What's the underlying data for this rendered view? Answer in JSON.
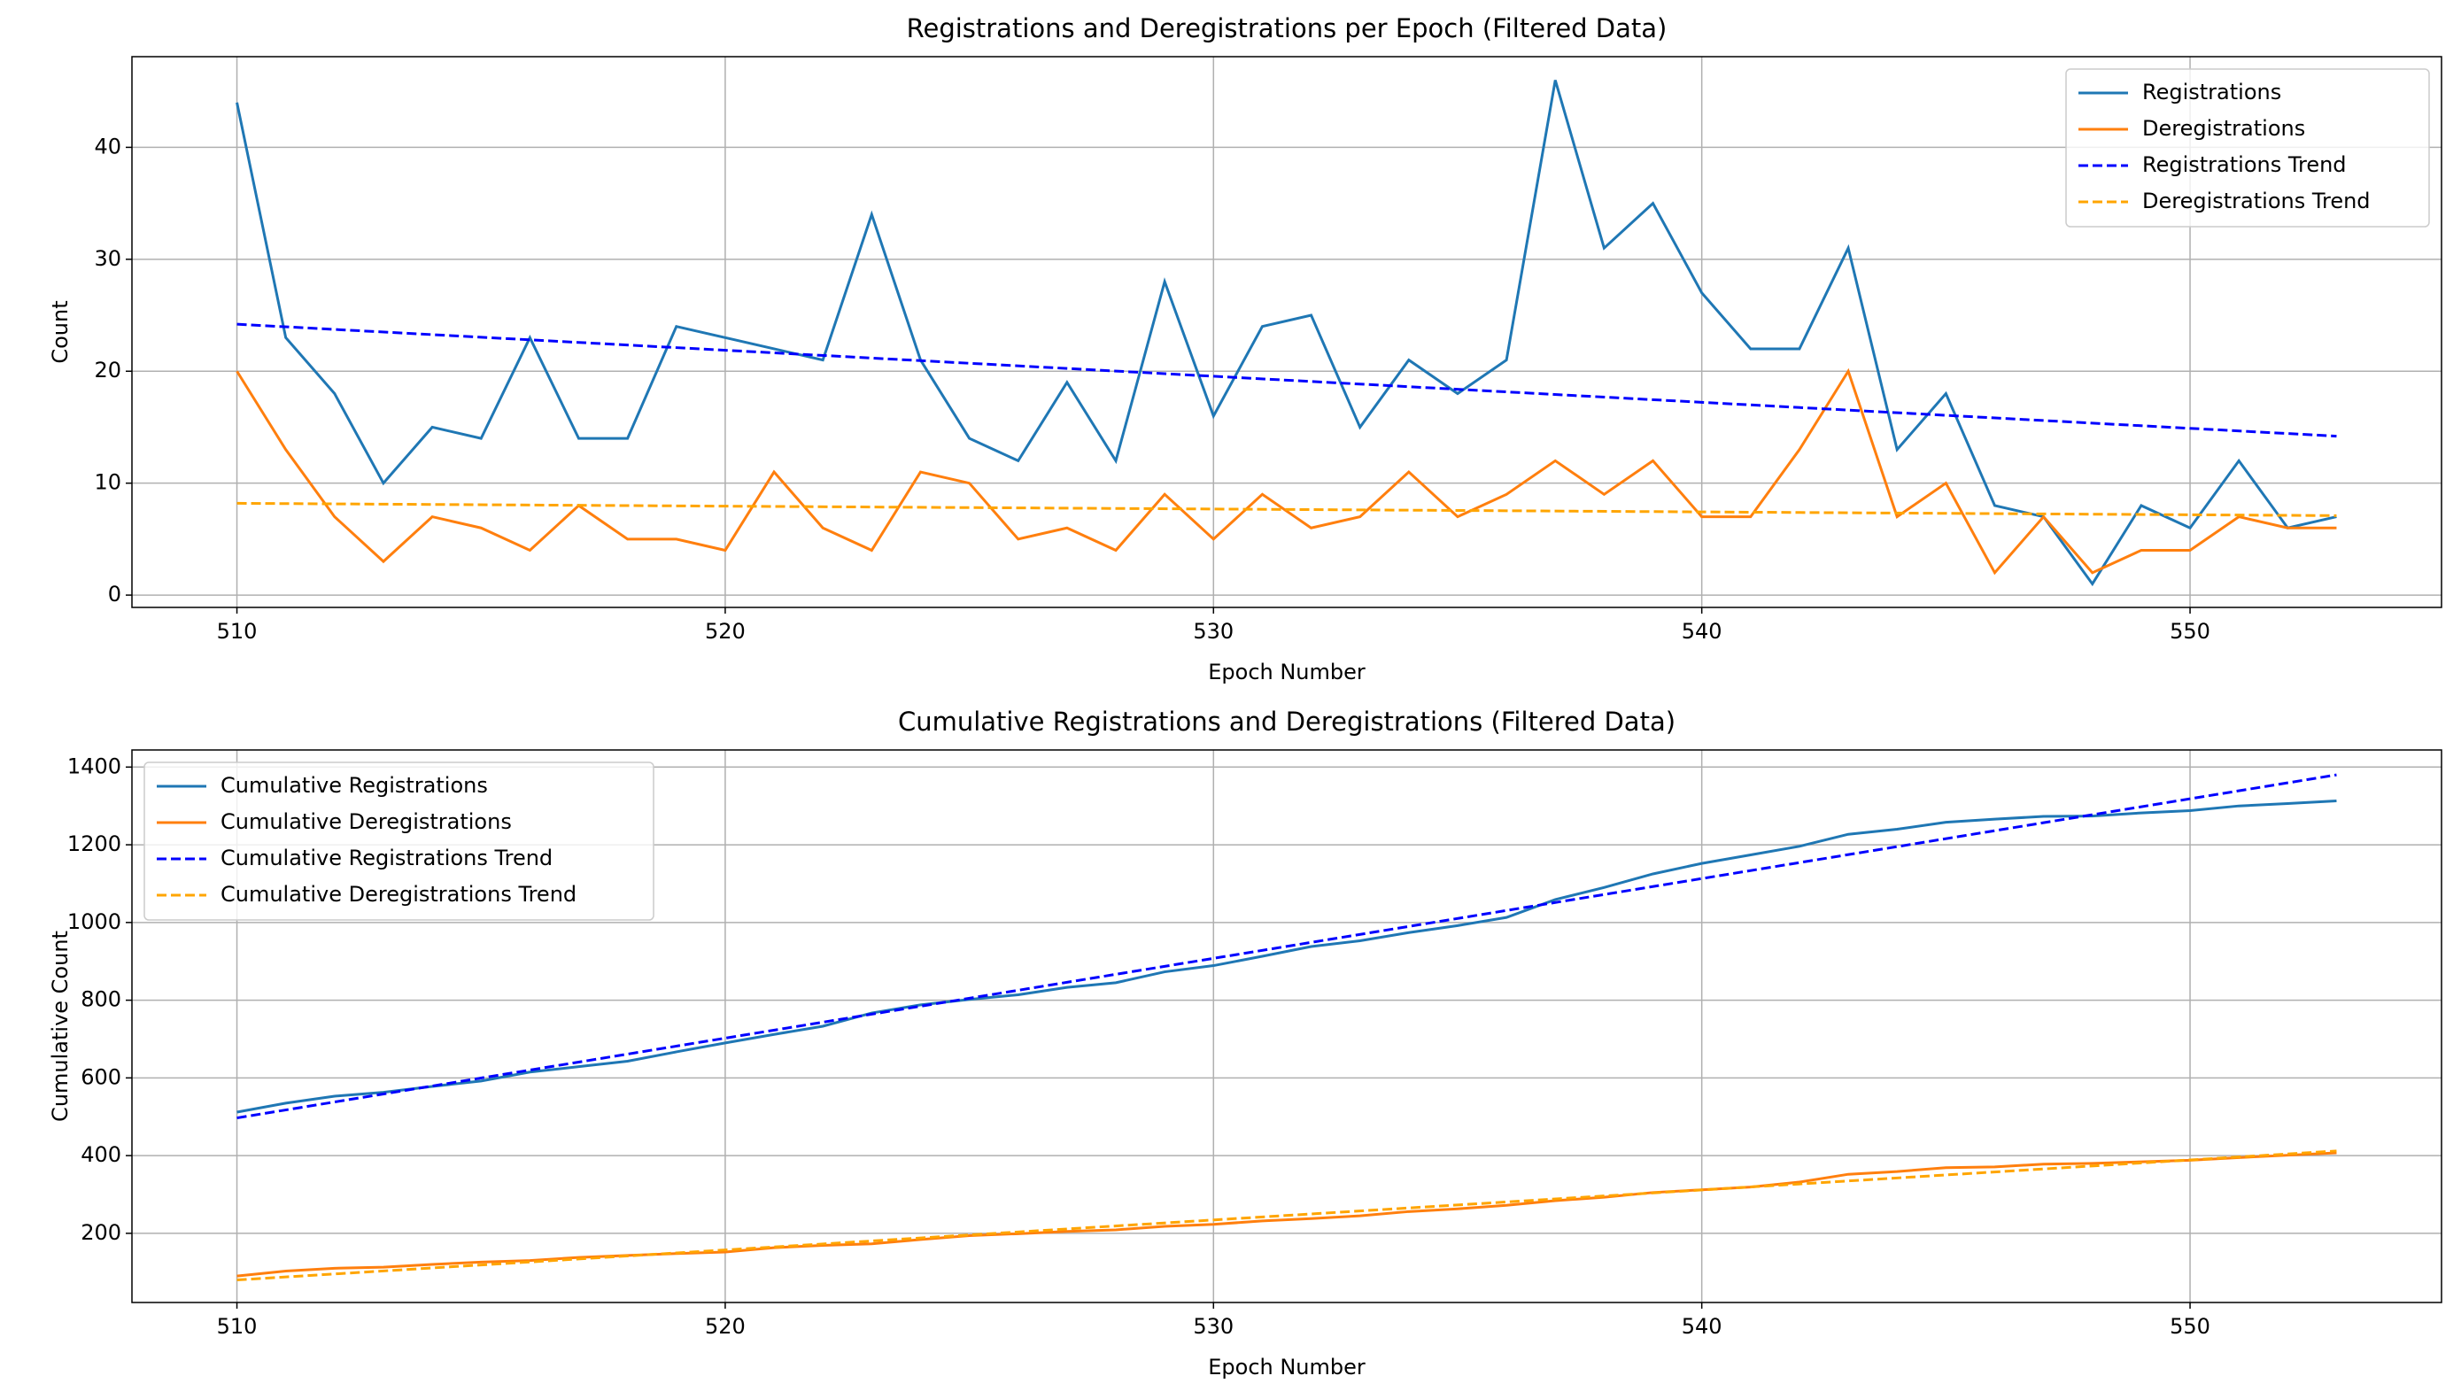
{
  "chart_data": [
    {
      "type": "line",
      "title": "Registrations and Deregistrations per Epoch (Filtered Data)",
      "xlabel": "Epoch Number",
      "ylabel": "Count",
      "x": [
        510,
        511,
        512,
        513,
        514,
        515,
        516,
        517,
        518,
        519,
        520,
        521,
        522,
        523,
        524,
        525,
        526,
        527,
        528,
        529,
        530,
        531,
        532,
        533,
        534,
        535,
        536,
        537,
        538,
        539,
        540,
        541,
        542,
        543,
        544,
        545,
        546,
        547,
        548,
        549,
        550,
        551,
        552,
        553
      ],
      "series": [
        {
          "name": "Registrations",
          "color": "#1f77b4",
          "dash": false,
          "values": [
            44,
            23,
            18,
            10,
            15,
            14,
            23,
            14,
            14,
            24,
            23,
            22,
            21,
            34,
            21,
            14,
            12,
            19,
            12,
            28,
            16,
            24,
            25,
            15,
            21,
            18,
            21,
            46,
            31,
            35,
            27,
            22,
            22,
            31,
            13,
            18,
            8,
            7,
            1,
            8,
            6,
            12,
            6,
            7
          ]
        },
        {
          "name": "Deregistrations",
          "color": "#ff7f0e",
          "dash": false,
          "values": [
            20,
            13,
            7,
            3,
            7,
            6,
            4,
            8,
            5,
            5,
            4,
            11,
            6,
            4,
            11,
            10,
            5,
            6,
            4,
            9,
            5,
            9,
            6,
            7,
            11,
            7,
            9,
            12,
            9,
            12,
            7,
            7,
            13,
            20,
            7,
            10,
            2,
            7,
            2,
            4,
            4,
            7,
            6,
            6
          ]
        },
        {
          "name": "Registrations Trend",
          "color": "#0000ff",
          "dash": true,
          "x": [
            510,
            553
          ],
          "values": [
            24.2,
            14.2
          ]
        },
        {
          "name": "Deregistrations Trend",
          "color": "#ffa500",
          "dash": true,
          "x": [
            510,
            553
          ],
          "values": [
            8.2,
            7.1
          ]
        }
      ],
      "xlim": [
        507.85,
        555.15
      ],
      "xticks": [
        510,
        520,
        530,
        540,
        550
      ],
      "ylim": [
        -1.1,
        48.1
      ],
      "yticks": [
        0,
        10,
        20,
        30,
        40
      ],
      "grid": true,
      "legend": "upper right"
    },
    {
      "type": "line",
      "title": "Cumulative Registrations and Deregistrations (Filtered Data)",
      "xlabel": "Epoch Number",
      "ylabel": "Cumulative Count",
      "x": [
        510,
        511,
        512,
        513,
        514,
        515,
        516,
        517,
        518,
        519,
        520,
        521,
        522,
        523,
        524,
        525,
        526,
        527,
        528,
        529,
        530,
        531,
        532,
        533,
        534,
        535,
        536,
        537,
        538,
        539,
        540,
        541,
        542,
        543,
        544,
        545,
        546,
        547,
        548,
        549,
        550,
        551,
        552,
        553
      ],
      "series": [
        {
          "name": "Cumulative Registrations",
          "color": "#1f77b4",
          "dash": false,
          "values": [
            512,
            535,
            553,
            563,
            578,
            592,
            615,
            629,
            643,
            667,
            690,
            712,
            733,
            767,
            788,
            802,
            814,
            833,
            845,
            873,
            889,
            913,
            938,
            953,
            974,
            992,
            1013,
            1059,
            1090,
            1125,
            1152,
            1174,
            1196,
            1227,
            1240,
            1258,
            1266,
            1273,
            1274,
            1282,
            1288,
            1300,
            1306,
            1313
          ]
        },
        {
          "name": "Cumulative Deregistrations",
          "color": "#ff7f0e",
          "dash": false,
          "values": [
            90,
            103,
            110,
            113,
            120,
            126,
            130,
            138,
            143,
            148,
            152,
            163,
            169,
            173,
            184,
            194,
            199,
            205,
            209,
            218,
            223,
            232,
            238,
            245,
            256,
            263,
            272,
            284,
            293,
            305,
            312,
            319,
            332,
            352,
            359,
            369,
            371,
            378,
            380,
            384,
            388,
            395,
            401,
            407
          ]
        },
        {
          "name": "Cumulative Registrations Trend",
          "color": "#0000ff",
          "dash": true,
          "x": [
            510,
            553
          ],
          "values": [
            497,
            1380
          ]
        },
        {
          "name": "Cumulative Deregistrations Trend",
          "color": "#ffa500",
          "dash": true,
          "x": [
            510,
            553
          ],
          "values": [
            80,
            412
          ]
        }
      ],
      "xlim": [
        507.85,
        555.15
      ],
      "xticks": [
        510,
        520,
        530,
        540,
        550
      ],
      "ylim": [
        22,
        1444
      ],
      "yticks": [
        200,
        400,
        600,
        800,
        1000,
        1200,
        1400
      ],
      "grid": true,
      "legend": "upper left"
    }
  ]
}
